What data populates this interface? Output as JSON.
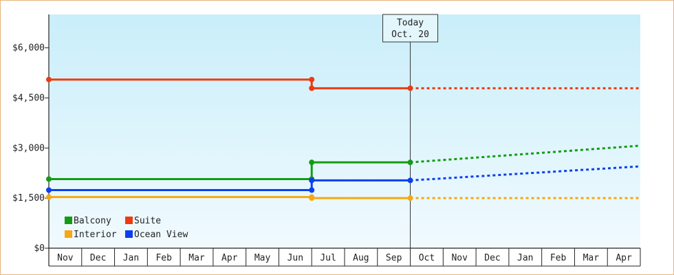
{
  "chart_data": {
    "type": "line",
    "title": "",
    "xlabel": "",
    "ylabel": "",
    "ylim": [
      0,
      7000
    ],
    "y_ticks": [
      "$0",
      "$1,500",
      "$3,000",
      "$4,500",
      "$6,000"
    ],
    "y_tick_values": [
      0,
      1500,
      3000,
      4500,
      6000
    ],
    "categories": [
      "Nov",
      "Dec",
      "Jan",
      "Feb",
      "Mar",
      "Apr",
      "May",
      "Jun",
      "Jul",
      "Aug",
      "Sep",
      "Oct",
      "Nov",
      "Dec",
      "Jan",
      "Feb",
      "Mar",
      "Apr"
    ],
    "grid": false,
    "legend_position": "bottom-left",
    "today_marker": {
      "line1": "Today",
      "line2": "Oct. 20",
      "at_month_index": 11
    },
    "series": [
      {
        "name": "Balcony",
        "color": "#129c12",
        "actual": [
          [
            0,
            2070
          ],
          [
            8,
            2070
          ],
          [
            8,
            2570
          ],
          [
            11,
            2570
          ]
        ],
        "forecast": [
          [
            11,
            2570
          ],
          [
            18,
            3070
          ]
        ]
      },
      {
        "name": "Suite",
        "color": "#ee3a10",
        "actual": [
          [
            0,
            5050
          ],
          [
            8,
            5050
          ],
          [
            8,
            4790
          ],
          [
            11,
            4790
          ]
        ],
        "forecast": [
          [
            11,
            4790
          ],
          [
            18,
            4790
          ]
        ]
      },
      {
        "name": "Interior",
        "color": "#f6a80e",
        "actual": [
          [
            0,
            1530
          ],
          [
            8,
            1530
          ],
          [
            8,
            1500
          ],
          [
            11,
            1500
          ]
        ],
        "forecast": [
          [
            11,
            1500
          ],
          [
            18,
            1500
          ]
        ]
      },
      {
        "name": "Ocean View",
        "color": "#0a3ff0",
        "actual": [
          [
            0,
            1740
          ],
          [
            8,
            1740
          ],
          [
            8,
            2030
          ],
          [
            11,
            2030
          ]
        ],
        "forecast": [
          [
            11,
            2030
          ],
          [
            18,
            2450
          ]
        ]
      }
    ]
  }
}
